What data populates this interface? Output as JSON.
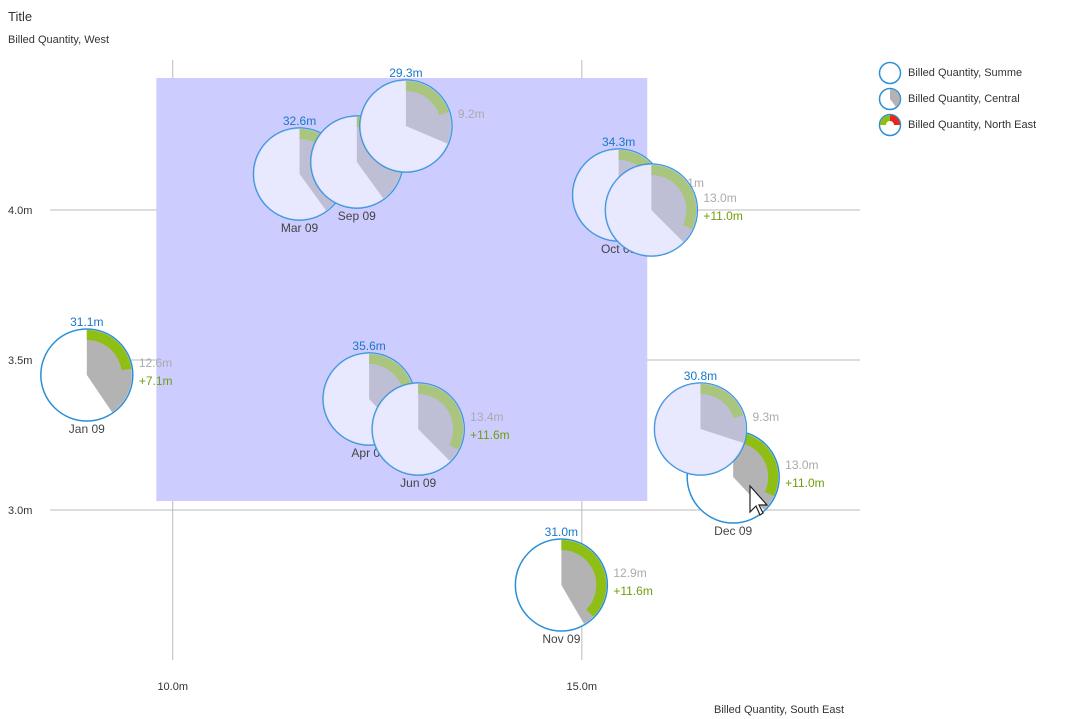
{
  "chart_data": {
    "type": "scatter",
    "title": "Title",
    "ylabel": "Billed Quantity, West",
    "xlabel": "Billed Quantity, South East",
    "xlim": [
      8.5,
      18.4
    ],
    "ylim": [
      2.5,
      4.5
    ],
    "x_ticks": [
      {
        "value": 10.0,
        "label": "10.0m"
      },
      {
        "value": 15.0,
        "label": "15.0m"
      }
    ],
    "y_ticks": [
      {
        "value": 3.0,
        "label": "3.0m"
      },
      {
        "value": 3.5,
        "label": "3.5m"
      },
      {
        "value": 4.0,
        "label": "4.0m"
      }
    ],
    "grid": true,
    "legend_position": "top-right",
    "selection_range": {
      "x": [
        9.8,
        15.8
      ],
      "y": [
        3.03,
        4.44
      ]
    },
    "legend": [
      {
        "label": "Billed Quantity, Summe",
        "symbol": "ring"
      },
      {
        "label": "Billed Quantity, Central",
        "symbol": "pie"
      },
      {
        "label": "Billed Quantity, North East",
        "symbol": "arc"
      }
    ],
    "points": [
      {
        "month": "Jan 09",
        "x": 8.95,
        "y": 3.45,
        "summe_label": "31.1m",
        "central_label": "12.6m",
        "delta_label": "+7.1m",
        "central_frac": 0.405,
        "ne_frac": 0.228,
        "selected": false
      },
      {
        "month": "Mar 09",
        "x": 11.55,
        "y": 4.12,
        "summe_label": "32.6m",
        "central_label": "",
        "delta_label": "",
        "central_frac": 0.4,
        "ne_frac": 0.2,
        "selected": true
      },
      {
        "month": "Sep 09",
        "x": 12.25,
        "y": 4.16,
        "summe_label": "",
        "central_label": "",
        "delta_label": "",
        "central_frac": 0.4,
        "ne_frac": 0.2,
        "selected": true
      },
      {
        "month": "",
        "x": 12.85,
        "y": 4.28,
        "summe_label": "29.3m",
        "central_label": "9.2m",
        "delta_label": "",
        "central_frac": 0.314,
        "ne_frac": 0.2,
        "selected": true
      },
      {
        "month": "Oct 09",
        "x": 15.45,
        "y": 4.05,
        "summe_label": "34.3m",
        "central_label": "13.1m",
        "delta_label": "",
        "central_frac": 0.382,
        "ne_frac": 0.25,
        "selected": true
      },
      {
        "month": "",
        "x": 15.85,
        "y": 4.0,
        "summe_label": "",
        "central_label": "13.0m",
        "delta_label": "+11.0m",
        "central_frac": 0.375,
        "ne_frac": 0.32,
        "selected": true
      },
      {
        "month": "Apr 09",
        "x": 12.4,
        "y": 3.37,
        "summe_label": "35.6m",
        "central_label": "",
        "delta_label": "",
        "central_frac": 0.38,
        "ne_frac": 0.25,
        "selected": true
      },
      {
        "month": "Jun 09",
        "x": 13.0,
        "y": 3.27,
        "summe_label": "",
        "central_label": "13.4m",
        "delta_label": "+11.6m",
        "central_frac": 0.376,
        "ne_frac": 0.326,
        "selected": true
      },
      {
        "month": "Dec 09",
        "x": 16.85,
        "y": 3.11,
        "summe_label": "",
        "central_label": "13.0m",
        "delta_label": "+11.0m",
        "central_frac": 0.38,
        "ne_frac": 0.32,
        "selected": false
      },
      {
        "month": "",
        "x": 16.45,
        "y": 3.27,
        "summe_label": "30.8m",
        "central_label": "9.3m",
        "delta_label": "",
        "central_frac": 0.3,
        "ne_frac": 0.2,
        "selected": true
      },
      {
        "month": "Nov 09",
        "x": 14.75,
        "y": 2.75,
        "summe_label": "31.0m",
        "central_label": "12.9m",
        "delta_label": "+11.6m",
        "central_frac": 0.416,
        "ne_frac": 0.374,
        "selected": false
      }
    ]
  },
  "colors": {
    "grid": "#bbbbbb",
    "selection": "#ccccff",
    "ring": "#2a8fd8",
    "central": "#b3b3b3",
    "north_east": "#8fbf14",
    "north_east_negative": "#e8261c"
  }
}
